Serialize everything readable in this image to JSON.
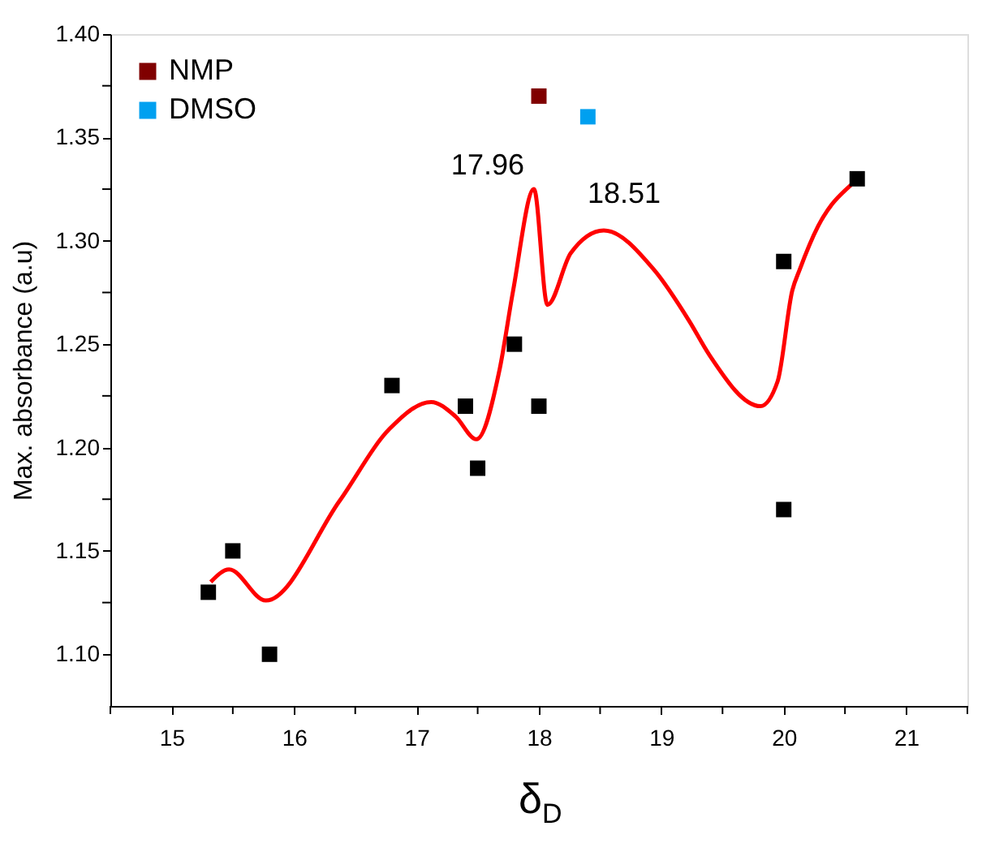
{
  "chart_data": {
    "type": "scatter",
    "xlabel": "δ$_{D}$",
    "ylabel": "Max. absorbance (a.u)",
    "xlim": [
      14.5,
      21.5
    ],
    "ylim": [
      1.075,
      1.4
    ],
    "xticks": [
      {
        "value": 14.5,
        "label": null
      },
      15,
      {
        "value": 15.5,
        "label": null
      },
      16,
      {
        "value": 16.5,
        "label": null
      },
      17,
      {
        "value": 17.5,
        "label": null
      },
      18,
      {
        "value": 18.5,
        "label": null
      },
      19,
      {
        "value": 19.5,
        "label": null
      },
      20,
      {
        "value": 20.5,
        "label": null
      },
      21,
      {
        "value": 21.5,
        "label": null
      }
    ],
    "yticks": [
      {
        "value": 1.1,
        "label": "1.10"
      },
      {
        "value": 1.125,
        "label": null
      },
      {
        "value": 1.15,
        "label": "1.15"
      },
      {
        "value": 1.175,
        "label": null
      },
      {
        "value": 1.2,
        "label": "1.20"
      },
      {
        "value": 1.225,
        "label": null
      },
      {
        "value": 1.25,
        "label": "1.25"
      },
      {
        "value": 1.275,
        "label": null
      },
      {
        "value": 1.3,
        "label": "1.30"
      },
      {
        "value": 1.325,
        "label": null
      },
      {
        "value": 1.35,
        "label": "1.35"
      },
      {
        "value": 1.375,
        "label": null
      },
      {
        "value": 1.4,
        "label": "1.40"
      }
    ],
    "grid": false,
    "legend": "top left",
    "marker": "square",
    "series": [
      {
        "type": "line",
        "color": "#ff0000",
        "marker": "none",
        "x": [
          15.32,
          15.47,
          15.77,
          16.37,
          16.78,
          17.12,
          17.32,
          17.49,
          17.68,
          17.79,
          17.96,
          18.07,
          18.26,
          18.53,
          18.94,
          19.23,
          19.39,
          19.81,
          19.95,
          20.07,
          20.13,
          20.28,
          20.55
        ],
        "values": [
          1.135,
          1.141,
          1.126,
          1.174,
          1.209,
          1.222,
          1.215,
          1.204,
          1.238,
          1.276,
          1.325,
          1.269,
          1.294,
          1.305,
          1.286,
          1.261,
          1.245,
          1.22,
          1.232,
          1.276,
          1.286,
          1.307,
          1.327
        ]
      },
      {
        "type": "scatter",
        "color": "#000000",
        "x": [
          15.3,
          15.5,
          15.8,
          16.8,
          17.4,
          17.5,
          17.8,
          18.0,
          20.0,
          20.0,
          20.6
        ],
        "values": [
          1.13,
          1.15,
          1.1,
          1.23,
          1.22,
          1.19,
          1.25,
          1.22,
          1.17,
          1.29,
          1.33
        ]
      },
      {
        "type": "scatter",
        "name": "NMP",
        "color": "#800000",
        "x": [
          18.0
        ],
        "values": [
          1.37
        ]
      },
      {
        "type": "scatter",
        "name": "DMSO",
        "color": "#00a0f0",
        "x": [
          18.4
        ],
        "values": [
          1.36
        ]
      }
    ],
    "annotations": [
      {
        "text": "17.96",
        "x": 17.96,
        "y": 1.325
      },
      {
        "text": "18.51",
        "x": 18.53,
        "y": 1.305
      }
    ]
  }
}
